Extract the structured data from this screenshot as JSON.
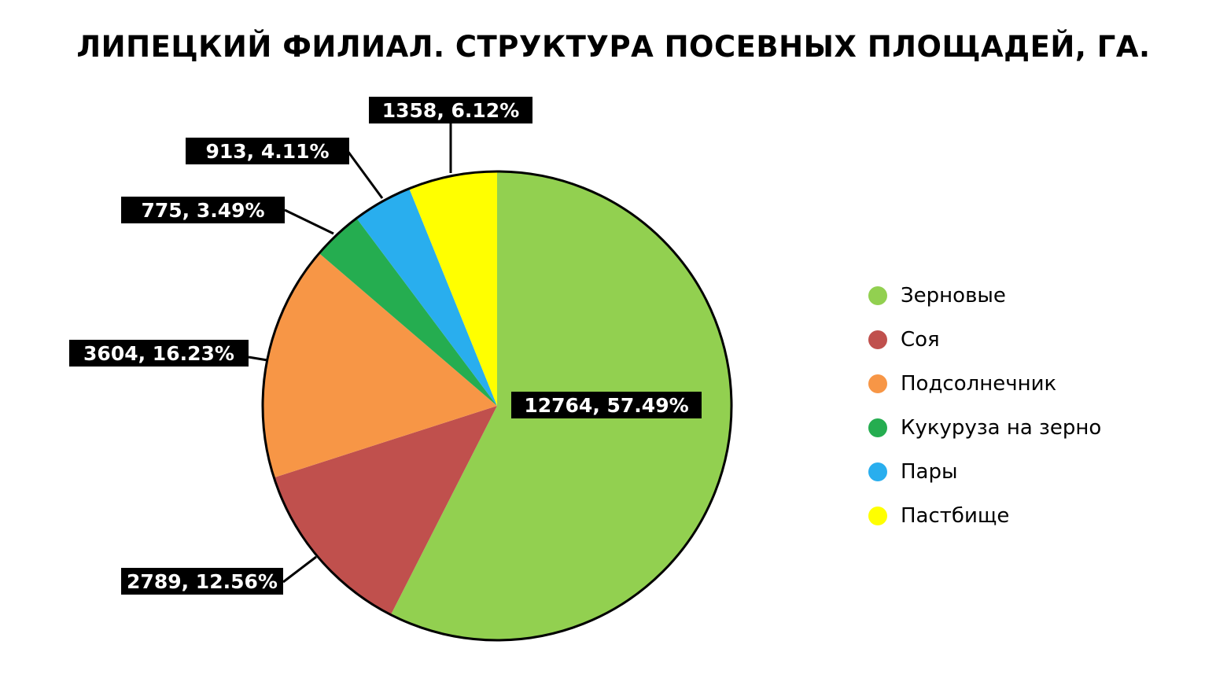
{
  "chart_data": {
    "type": "pie",
    "title": "ЛИПЕЦКИЙ ФИЛИАЛ. СТРУКТУРА ПОСЕВНЫХ ПЛОЩАДЕЙ, ГА.",
    "legend_position": "right",
    "slices": [
      {
        "name": "Зерновые",
        "value": 12764,
        "label": "12764, 57.49%",
        "color": "#92d050"
      },
      {
        "name": "Соя",
        "value": 2789,
        "label": "2789, 12.56%",
        "color": "#c0504d"
      },
      {
        "name": "Подсолнечник",
        "value": 3604,
        "label": "3604, 16.23%",
        "color": "#f79646"
      },
      {
        "name": "Кукуруза на зерно",
        "value": 775,
        "label": "775, 3.49%",
        "color": "#25ad50"
      },
      {
        "name": "Пары",
        "value": 913,
        "label": "913, 4.11%",
        "color": "#29aeee"
      },
      {
        "name": "Пастбище",
        "value": 1358,
        "label": "1358, 6.12%",
        "color": "#ffff00"
      }
    ]
  }
}
